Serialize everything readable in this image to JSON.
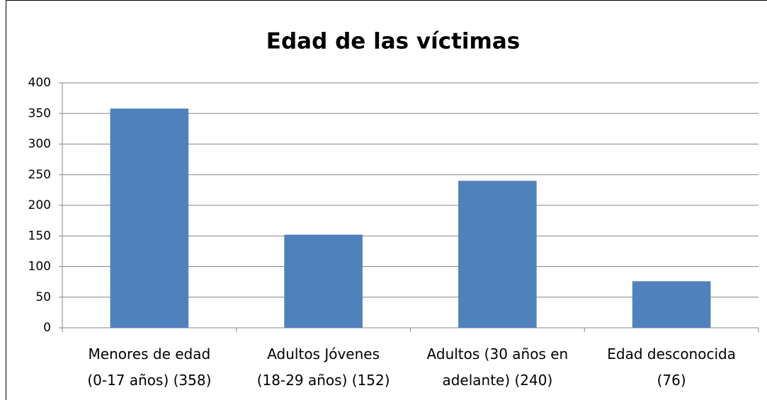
{
  "chart_data": {
    "type": "bar",
    "title": "Edad de las víctimas",
    "categories": [
      "Menores de edad\n(0-17 años)  (358)",
      "Adultos Jóvenes\n(18-29 años) (152)",
      "Adultos (30 años en\nadelante) (240)",
      "Edad desconocida\n(76)"
    ],
    "values": [
      358,
      152,
      240,
      76
    ],
    "color": "#4f81bd",
    "ylim": [
      0,
      400
    ],
    "yticks": [
      0,
      50,
      100,
      150,
      200,
      250,
      300,
      350,
      400
    ],
    "grid": true
  }
}
